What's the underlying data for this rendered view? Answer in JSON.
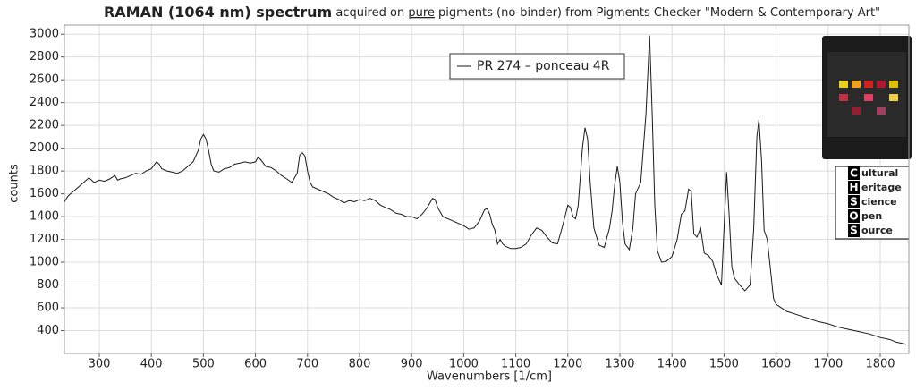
{
  "chart_data": {
    "type": "line",
    "title_parts": [
      "RAMAN (1064 nm) spectrum",
      " acquired on ",
      "pure",
      " pigments (no-binder) from Pigments Checker \"Modern & Contemporary Art\""
    ],
    "xlabel": "Wavenumbers [1/cm]",
    "ylabel": "counts",
    "x": [
      233,
      240,
      250,
      260,
      270,
      280,
      285,
      290,
      300,
      310,
      320,
      330,
      335,
      340,
      350,
      360,
      370,
      380,
      390,
      400,
      410,
      415,
      420,
      430,
      440,
      450,
      460,
      470,
      480,
      490,
      495,
      500,
      505,
      510,
      515,
      520,
      530,
      540,
      550,
      560,
      570,
      580,
      590,
      600,
      605,
      610,
      620,
      630,
      640,
      650,
      660,
      670,
      680,
      685,
      690,
      695,
      700,
      705,
      710,
      720,
      730,
      740,
      750,
      760,
      770,
      780,
      790,
      800,
      810,
      820,
      830,
      840,
      850,
      860,
      870,
      880,
      890,
      900,
      910,
      920,
      930,
      940,
      945,
      950,
      960,
      970,
      980,
      990,
      1000,
      1010,
      1020,
      1030,
      1040,
      1045,
      1050,
      1055,
      1060,
      1065,
      1070,
      1075,
      1080,
      1090,
      1100,
      1110,
      1120,
      1130,
      1140,
      1150,
      1160,
      1170,
      1180,
      1190,
      1200,
      1205,
      1210,
      1215,
      1220,
      1228,
      1233,
      1238,
      1243,
      1250,
      1260,
      1270,
      1280,
      1285,
      1290,
      1295,
      1300,
      1305,
      1310,
      1318,
      1325,
      1330,
      1340,
      1350,
      1357,
      1362,
      1367,
      1372,
      1380,
      1390,
      1400,
      1410,
      1418,
      1425,
      1432,
      1437,
      1442,
      1448,
      1455,
      1462,
      1470,
      1478,
      1485,
      1495,
      1500,
      1505,
      1510,
      1515,
      1520,
      1530,
      1540,
      1550,
      1557,
      1563,
      1567,
      1572,
      1577,
      1583,
      1590,
      1595,
      1600,
      1620,
      1640,
      1660,
      1680,
      1700,
      1720,
      1740,
      1760,
      1780,
      1800,
      1810,
      1820,
      1830,
      1840,
      1850
    ],
    "series": [
      {
        "name": "PR 274 – ponceau 4R",
        "color": "#1a1a1a",
        "values": [
          1530,
          1580,
          1620,
          1660,
          1700,
          1740,
          1720,
          1700,
          1720,
          1710,
          1730,
          1760,
          1720,
          1730,
          1740,
          1760,
          1780,
          1770,
          1800,
          1820,
          1880,
          1860,
          1820,
          1800,
          1790,
          1780,
          1800,
          1840,
          1880,
          1980,
          2080,
          2120,
          2080,
          1980,
          1860,
          1800,
          1790,
          1820,
          1830,
          1860,
          1870,
          1880,
          1870,
          1880,
          1920,
          1900,
          1840,
          1830,
          1800,
          1760,
          1730,
          1700,
          1780,
          1940,
          1960,
          1930,
          1800,
          1700,
          1660,
          1640,
          1620,
          1600,
          1570,
          1550,
          1520,
          1540,
          1530,
          1550,
          1540,
          1560,
          1540,
          1500,
          1480,
          1460,
          1430,
          1420,
          1400,
          1400,
          1380,
          1420,
          1480,
          1560,
          1550,
          1480,
          1400,
          1380,
          1360,
          1340,
          1320,
          1290,
          1300,
          1360,
          1460,
          1470,
          1420,
          1330,
          1280,
          1160,
          1200,
          1160,
          1140,
          1120,
          1120,
          1130,
          1160,
          1240,
          1300,
          1280,
          1220,
          1170,
          1160,
          1320,
          1500,
          1480,
          1400,
          1380,
          1500,
          2000,
          2180,
          2080,
          1700,
          1300,
          1150,
          1130,
          1300,
          1450,
          1680,
          1840,
          1700,
          1350,
          1160,
          1110,
          1300,
          1600,
          1700,
          2300,
          2990,
          2300,
          1500,
          1100,
          1000,
          1010,
          1050,
          1200,
          1420,
          1450,
          1640,
          1620,
          1250,
          1220,
          1300,
          1080,
          1060,
          1010,
          900,
          800,
          1300,
          1790,
          1400,
          960,
          860,
          800,
          750,
          800,
          1300,
          2100,
          2250,
          1900,
          1280,
          1200,
          900,
          680,
          630,
          570,
          540,
          510,
          480,
          460,
          430,
          410,
          390,
          370,
          340,
          330,
          320,
          300,
          290,
          280
        ]
      }
    ],
    "xlim": [
      233,
      1855
    ],
    "ylim": [
      200,
      3080
    ],
    "xticks": [
      300,
      400,
      500,
      600,
      700,
      800,
      900,
      1000,
      1100,
      1200,
      1300,
      1400,
      1500,
      1600,
      1700,
      1800
    ],
    "yticks": [
      400,
      600,
      800,
      1000,
      1200,
      1400,
      1600,
      1800,
      2000,
      2200,
      2400,
      2600,
      2800,
      3000
    ],
    "grid": true,
    "legend": "top-center"
  },
  "logo": {
    "lines": [
      {
        "initial": "C",
        "rest": "ultural"
      },
      {
        "initial": "H",
        "rest": "eritage"
      },
      {
        "initial": "S",
        "rest": "cience"
      },
      {
        "initial": "O",
        "rest": "pen"
      },
      {
        "initial": "S",
        "rest": "ource"
      }
    ]
  }
}
